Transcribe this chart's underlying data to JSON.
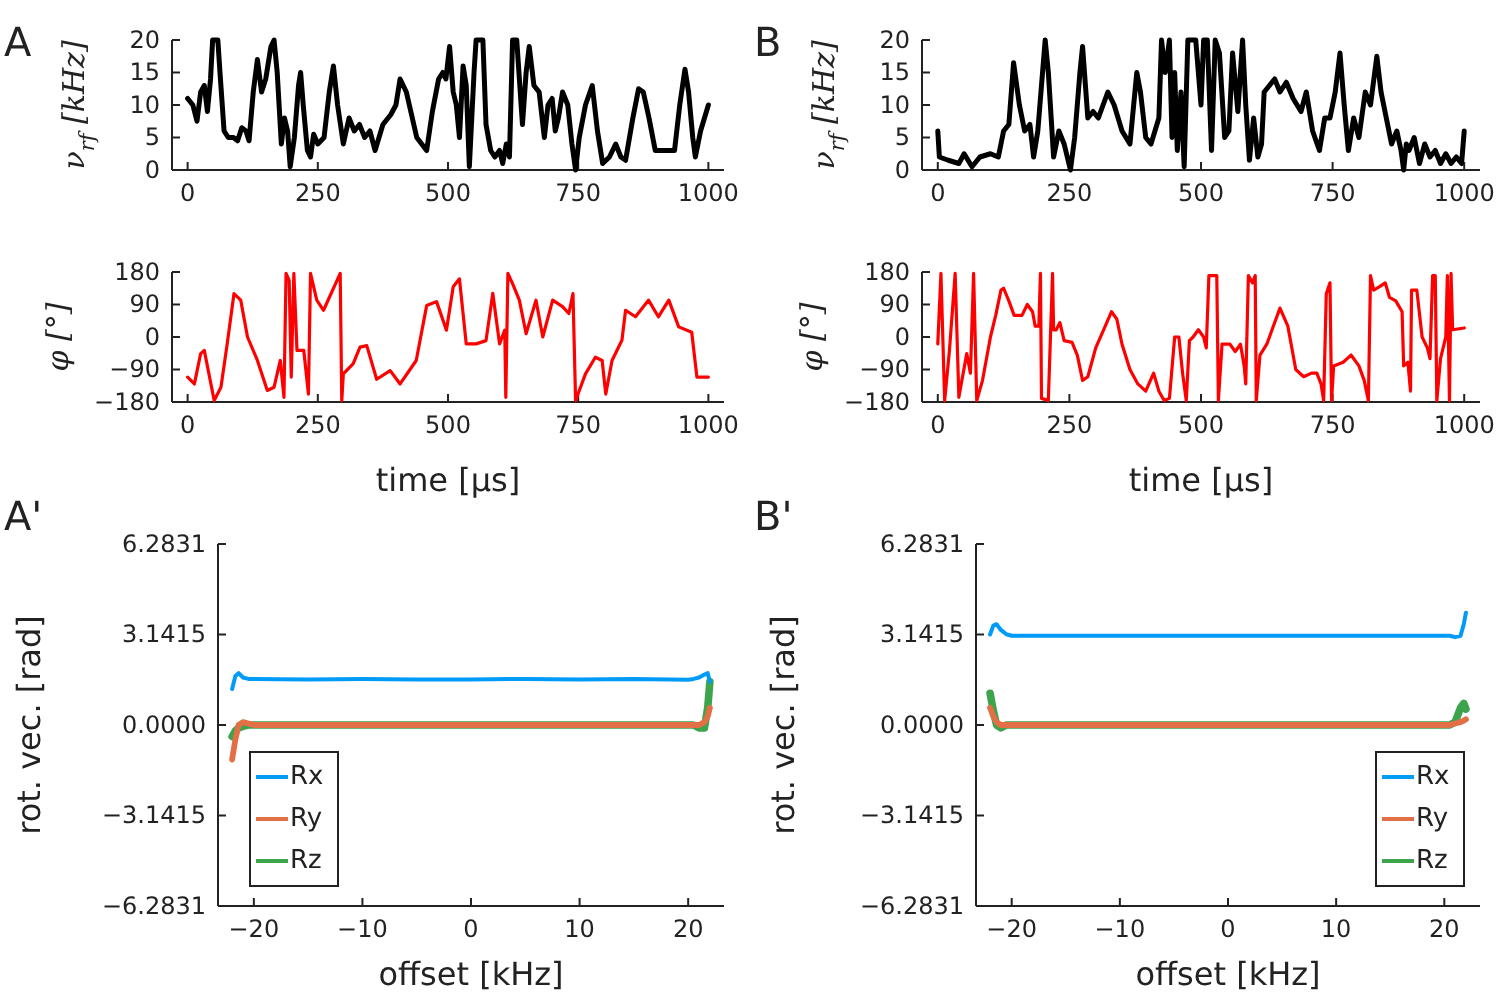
{
  "chart_data": [
    {
      "type": "line",
      "title": "A",
      "ylabel": "ν$_{rf}$ [kHz]",
      "xlim": [
        -30,
        1030
      ],
      "ylim": [
        0,
        20
      ],
      "xticks": [
        0,
        250,
        500,
        750,
        1000
      ],
      "yticks": [
        0,
        5,
        10,
        15,
        20
      ],
      "x": [
        0,
        10,
        18,
        25,
        32,
        38,
        44,
        48,
        58,
        63,
        70,
        78,
        88,
        96,
        104,
        112,
        118,
        126,
        134,
        142,
        150,
        160,
        166,
        172,
        180,
        186,
        192,
        197,
        205,
        213,
        217,
        222,
        230,
        236,
        242,
        250,
        262,
        272,
        280,
        288,
        299,
        310,
        320,
        330,
        340,
        350,
        360,
        375,
        390,
        400,
        408,
        420,
        440,
        459,
        470,
        482,
        490,
        496,
        503,
        510,
        516,
        522,
        529,
        535,
        541,
        550,
        554,
        567,
        573,
        582,
        590,
        599,
        605,
        612,
        618,
        624,
        632,
        643,
        650,
        656,
        665,
        675,
        685,
        692,
        700,
        706,
        712,
        720,
        730,
        738,
        745,
        752,
        764,
        777,
        787,
        797,
        810,
        822,
        832,
        841,
        855,
        866,
        875,
        886,
        898,
        920,
        935,
        945,
        955,
        962,
        970,
        975,
        985,
        1000
      ],
      "series": [
        {
          "color": "#000000",
          "values": [
            11,
            10,
            7.5,
            12,
            13,
            9,
            14,
            20,
            20,
            14,
            6,
            5,
            5,
            4.5,
            6.5,
            6,
            4.5,
            12,
            17,
            12,
            14,
            19,
            20,
            15,
            4,
            8,
            6,
            0.5,
            5,
            13,
            15,
            10,
            3,
            2,
            5.5,
            4,
            5,
            12,
            16,
            10,
            4,
            8,
            6,
            7,
            5,
            6,
            3,
            7,
            8.5,
            10,
            14,
            12,
            5,
            3,
            9,
            14,
            15,
            14,
            19,
            12,
            10,
            5,
            16,
            13,
            0.5,
            15,
            20,
            20,
            7,
            3,
            2,
            3,
            1,
            4,
            2,
            20,
            20,
            7,
            15,
            19,
            13,
            12,
            5,
            10,
            11,
            6,
            8,
            12,
            10,
            4,
            0,
            5,
            10,
            13,
            6,
            1,
            2,
            4,
            2,
            1.5,
            8,
            12.5,
            12,
            8,
            3,
            3,
            3,
            10,
            15.5,
            12,
            5,
            2,
            6,
            10
          ]
        }
      ]
    },
    {
      "type": "line",
      "title": "B",
      "ylabel": "ν$_{rf}$ [kHz]",
      "xlim": [
        -30,
        1030
      ],
      "ylim": [
        0,
        20
      ],
      "xticks": [
        0,
        250,
        500,
        750,
        1000
      ],
      "yticks": [
        0,
        5,
        10,
        15,
        20
      ],
      "x": [
        0,
        3,
        20,
        40,
        50,
        65,
        80,
        100,
        115,
        125,
        135,
        144,
        155,
        165,
        175,
        182,
        190,
        204,
        210,
        220,
        230,
        240,
        252,
        260,
        270,
        275,
        285,
        295,
        305,
        323,
        335,
        350,
        365,
        378,
        385,
        395,
        405,
        420,
        425,
        432,
        440,
        445,
        450,
        455,
        462,
        468,
        475,
        490,
        500,
        505,
        512,
        520,
        527,
        535,
        545,
        553,
        560,
        570,
        579,
        585,
        592,
        600,
        608,
        615,
        620,
        630,
        640,
        650,
        662,
        675,
        690,
        700,
        712,
        725,
        735,
        745,
        755,
        764,
        772,
        780,
        790,
        800,
        812,
        822,
        834,
        842,
        852,
        862,
        872,
        880,
        885,
        890,
        895,
        905,
        915,
        925,
        935,
        945,
        955,
        965,
        975,
        985,
        995,
        1000
      ],
      "series": [
        {
          "color": "#000000",
          "values": [
            6,
            2,
            1.5,
            1,
            2.5,
            0.5,
            2,
            2.5,
            2,
            6,
            7,
            16.5,
            10,
            6,
            7,
            2,
            6,
            20,
            15,
            2,
            6,
            4,
            0,
            5,
            15,
            19,
            8,
            9,
            8,
            12,
            10,
            6,
            4,
            15,
            12,
            5,
            4,
            8,
            20,
            15,
            20,
            5,
            15,
            3,
            12,
            0.5,
            20,
            20,
            10,
            20,
            20,
            3,
            20,
            18,
            5,
            6,
            18,
            9,
            20,
            10,
            1.5,
            8,
            2,
            4,
            12,
            13,
            14,
            12,
            13.5,
            11,
            9,
            12,
            6,
            3,
            8,
            8,
            12,
            18,
            10,
            3,
            8,
            5,
            12,
            10,
            17.5,
            12,
            8,
            4,
            6,
            3,
            0,
            4,
            3,
            5,
            1,
            4,
            2,
            3,
            1,
            2.5,
            1,
            2,
            1,
            6
          ]
        }
      ]
    },
    {
      "type": "line",
      "xlabel": "time [μs]",
      "ylabel": "φ [°]",
      "xlim": [
        -30,
        1030
      ],
      "ylim": [
        -180,
        180
      ],
      "xticks": [
        0,
        250,
        500,
        750,
        1000
      ],
      "yticks": [
        {
          "value": -180,
          "label": "−180"
        },
        {
          "value": -90,
          "label": "−90"
        },
        0,
        90,
        180
      ],
      "x": [
        0,
        13,
        25,
        32,
        51,
        64,
        76,
        89,
        102,
        115,
        134,
        153,
        166,
        178,
        185,
        189,
        195,
        199,
        204,
        210,
        223,
        232,
        236,
        248,
        261,
        293,
        296,
        299,
        318,
        331,
        344,
        363,
        389,
        408,
        439,
        459,
        478,
        497,
        510,
        522,
        535,
        554,
        573,
        586,
        599,
        609,
        611,
        615,
        624,
        637,
        650,
        669,
        682,
        701,
        720,
        732,
        740,
        745,
        764,
        783,
        796,
        803,
        815,
        834,
        841,
        860,
        885,
        904,
        924,
        943,
        968,
        978,
        1000
      ],
      "series": [
        {
          "color": "#ff0000",
          "values": [
            -111,
            -130,
            -46,
            -37,
            -176,
            -139,
            -19,
            120,
            102,
            0,
            -65,
            -148,
            -139,
            -65,
            -167,
            176,
            157,
            -111,
            176,
            -37,
            -37,
            -158,
            176,
            102,
            74,
            176,
            -176,
            -102,
            -74,
            -28,
            -24,
            -117,
            -93,
            -130,
            -65,
            87,
            98,
            19,
            139,
            161,
            -19,
            -19,
            -10,
            121,
            -19,
            19,
            -167,
            176,
            148,
            102,
            9,
            102,
            0,
            102,
            84,
            65,
            120,
            -176,
            -102,
            -56,
            -65,
            -158,
            -65,
            -9,
            74,
            56,
            102,
            56,
            102,
            28,
            13,
            -111,
            -111
          ]
        }
      ]
    },
    {
      "type": "line",
      "xlabel": "time [μs]",
      "ylabel": "φ [°]",
      "xlim": [
        -30,
        1030
      ],
      "ylim": [
        -180,
        180
      ],
      "xticks": [
        0,
        250,
        500,
        750,
        1000
      ],
      "yticks": [
        {
          "value": -180,
          "label": "−180"
        },
        {
          "value": -90,
          "label": "−90"
        },
        0,
        90,
        180
      ],
      "x": [
        0,
        6,
        13,
        22,
        33,
        40,
        55,
        62,
        68,
        74,
        85,
        100,
        110,
        120,
        125,
        135,
        145,
        160,
        170,
        180,
        185,
        192,
        195,
        197,
        210,
        218,
        220,
        225,
        232,
        240,
        255,
        265,
        275,
        285,
        300,
        315,
        330,
        340,
        350,
        365,
        380,
        395,
        410,
        420,
        430,
        440,
        450,
        458,
        465,
        472,
        478,
        485,
        495,
        505,
        510,
        515,
        530,
        533,
        540,
        555,
        565,
        575,
        582,
        585,
        590,
        598,
        603,
        605,
        612,
        625,
        640,
        650,
        665,
        680,
        695,
        710,
        720,
        728,
        733,
        738,
        745,
        748,
        752,
        770,
        785,
        800,
        810,
        818,
        822,
        828,
        840,
        850,
        858,
        870,
        882,
        885,
        893,
        898,
        900,
        910,
        920,
        930,
        935,
        940,
        945,
        948,
        955,
        965,
        968,
        972,
        975,
        978,
        1000
      ],
      "series": [
        {
          "color": "#ff0000",
          "values": [
            -19,
            176,
            -176,
            -40,
            176,
            -167,
            -46,
            -100,
            176,
            -176,
            -120,
            0,
            60,
            130,
            135,
            100,
            60,
            60,
            90,
            70,
            30,
            30,
            176,
            -170,
            -176,
            176,
            20,
            20,
            40,
            -10,
            -15,
            -50,
            -120,
            -110,
            -30,
            20,
            70,
            50,
            -20,
            -90,
            -130,
            -150,
            -100,
            -150,
            -176,
            -170,
            0,
            0,
            -100,
            -176,
            -10,
            0,
            20,
            0,
            -30,
            170,
            170,
            -176,
            -20,
            -20,
            -40,
            -20,
            -80,
            -130,
            170,
            150,
            170,
            -176,
            -50,
            -20,
            40,
            80,
            30,
            -90,
            -110,
            -100,
            -100,
            -130,
            -176,
            120,
            150,
            -176,
            -80,
            -70,
            -50,
            -80,
            -120,
            -176,
            170,
            130,
            140,
            150,
            110,
            100,
            70,
            -80,
            -70,
            -150,
            130,
            130,
            0,
            -30,
            -60,
            170,
            170,
            -176,
            -60,
            0,
            170,
            -176,
            176,
            20,
            25
          ]
        }
      ]
    },
    {
      "type": "line",
      "title": "A'",
      "xlabel": "offset [kHz]",
      "ylabel": "rot. vec. [rad]",
      "xlim": [
        -23.3,
        23.3
      ],
      "ylim": [
        -6.2831,
        6.2831
      ],
      "xticks": [
        -20,
        -10,
        0,
        10,
        20
      ],
      "yticks": [
        {
          "value": -6.2831,
          "label": "−6.2831"
        },
        {
          "value": -3.1415,
          "label": "−3.1415"
        },
        {
          "value": 0,
          "label": "0.0000"
        },
        3.1415,
        6.2831
      ],
      "legend": "bottom left",
      "x": [
        -22,
        -21.7,
        -21.4,
        -21,
        -20.5,
        -20,
        -15,
        -10,
        -5,
        0,
        5,
        10,
        15,
        20,
        20.5,
        21,
        21.5,
        21.8,
        22
      ],
      "series": [
        {
          "name": "Rx",
          "color": "#009af9",
          "values": [
            1.25,
            1.7,
            1.8,
            1.65,
            1.6,
            1.6,
            1.58,
            1.6,
            1.58,
            1.58,
            1.6,
            1.58,
            1.6,
            1.57,
            1.6,
            1.65,
            1.75,
            1.8,
            1.5
          ]
        },
        {
          "name": "Ry",
          "color": "#e26f46",
          "values": [
            -1.2,
            -0.5,
            0,
            0.1,
            0.05,
            0,
            0,
            0,
            0,
            0,
            0,
            0,
            0,
            0,
            0,
            0,
            0.1,
            0.3,
            0.6
          ]
        },
        {
          "name": "Rz",
          "color": "#3da44d",
          "values": [
            -0.4,
            -0.2,
            -0.1,
            -0.05,
            0,
            0,
            0,
            0,
            0,
            0,
            0,
            0,
            0,
            0,
            0,
            -0.1,
            -0.1,
            0.6,
            1.5
          ]
        }
      ]
    },
    {
      "type": "line",
      "title": "B'",
      "xlabel": "offset [kHz]",
      "ylabel": "rot. vec. [rad]",
      "xlim": [
        -23.3,
        23.3
      ],
      "ylim": [
        -6.2831,
        6.2831
      ],
      "xticks": [
        -20,
        -10,
        0,
        10,
        20
      ],
      "yticks": [
        {
          "value": -6.2831,
          "label": "−6.2831"
        },
        {
          "value": -3.1415,
          "label": "−3.1415"
        },
        {
          "value": 0,
          "label": "0.0000"
        },
        3.1415,
        6.2831
      ],
      "legend": "bottom right",
      "x": [
        -22,
        -21.7,
        -21.4,
        -21,
        -20.5,
        -20,
        -15,
        -10,
        -5,
        0,
        5,
        10,
        15,
        20,
        20.5,
        21,
        21.5,
        21.8,
        22
      ],
      "series": [
        {
          "name": "Rx",
          "color": "#009af9",
          "values": [
            3.14,
            3.45,
            3.5,
            3.3,
            3.15,
            3.1,
            3.1,
            3.1,
            3.1,
            3.1,
            3.1,
            3.1,
            3.1,
            3.1,
            3.1,
            3.05,
            3.1,
            3.5,
            3.9
          ]
        },
        {
          "name": "Ry",
          "color": "#e26f46",
          "values": [
            0.6,
            0.3,
            0.1,
            0,
            0,
            0,
            0,
            0,
            0,
            0,
            0,
            0,
            0,
            0,
            0,
            0.05,
            0.1,
            0.15,
            0.2
          ]
        },
        {
          "name": "Rz",
          "color": "#3da44d",
          "values": [
            1.1,
            0.5,
            0,
            -0.1,
            0,
            0,
            0,
            0,
            0,
            0,
            0,
            0,
            0,
            0,
            0,
            0.1,
            0.6,
            0.75,
            0.55
          ]
        }
      ]
    }
  ]
}
